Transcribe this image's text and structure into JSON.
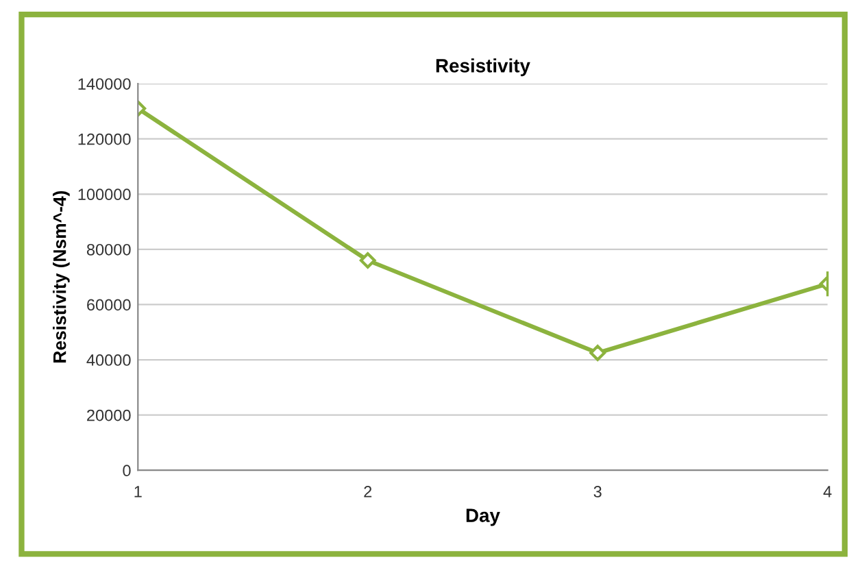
{
  "chart_data": {
    "type": "line",
    "title": "Resistivity",
    "xlabel": "Day",
    "ylabel": "Resistivity (Nsm^-4)",
    "x": [
      1,
      2,
      3,
      4
    ],
    "series": [
      {
        "color": "#8cb33e",
        "values": [
          131000,
          76000,
          42500,
          67500
        ],
        "errors": [
          null,
          null,
          null,
          4500
        ]
      }
    ],
    "xlim": [
      1,
      4
    ],
    "xticks": [
      1,
      2,
      3,
      4
    ],
    "ylim": [
      0,
      140000
    ],
    "yticks": [
      0,
      20000,
      40000,
      60000,
      80000,
      100000,
      120000,
      140000
    ],
    "grid": "y",
    "marker": "diamond",
    "line_style": "solid"
  }
}
